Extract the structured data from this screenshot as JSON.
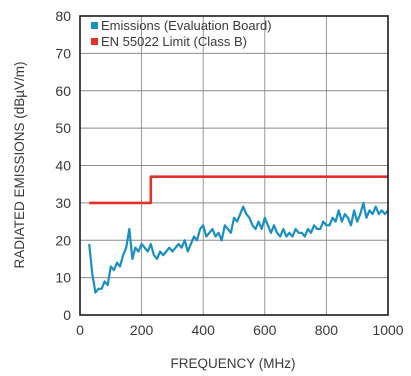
{
  "chart_data": {
    "type": "line",
    "xlabel": "FREQUENCY (MHz)",
    "ylabel": "RADIATED EMISSIONS (dBµV/m)",
    "xlim": [
      0,
      1000
    ],
    "ylim": [
      0,
      80
    ],
    "xticks": [
      0,
      200,
      400,
      600,
      800,
      1000
    ],
    "yticks": [
      0,
      10,
      20,
      30,
      40,
      50,
      60,
      70,
      80
    ],
    "grid": true,
    "legend": "top-left",
    "series": [
      {
        "name": "Emissions (Evaluation Board)",
        "color": "#1a8fc1",
        "x": [
          30,
          40,
          50,
          60,
          70,
          80,
          90,
          100,
          110,
          120,
          130,
          140,
          150,
          160,
          170,
          180,
          190,
          200,
          210,
          220,
          230,
          240,
          250,
          260,
          270,
          280,
          290,
          300,
          310,
          320,
          330,
          340,
          350,
          360,
          370,
          380,
          390,
          400,
          410,
          420,
          430,
          440,
          450,
          460,
          470,
          480,
          490,
          500,
          510,
          520,
          530,
          540,
          550,
          560,
          570,
          580,
          590,
          600,
          610,
          620,
          630,
          640,
          650,
          660,
          670,
          680,
          690,
          700,
          710,
          720,
          730,
          740,
          750,
          760,
          770,
          780,
          790,
          800,
          810,
          820,
          830,
          840,
          850,
          860,
          870,
          880,
          890,
          900,
          910,
          920,
          930,
          940,
          950,
          960,
          970,
          980,
          990,
          1000
        ],
        "values": [
          19,
          11,
          6,
          7,
          7,
          9,
          8,
          13,
          12,
          14,
          13,
          16,
          18,
          23,
          15,
          18,
          17,
          19,
          18,
          17,
          19,
          16,
          15,
          17,
          16,
          17,
          18,
          17,
          18,
          19,
          18,
          20,
          17,
          19,
          21,
          20,
          23,
          24,
          21,
          22,
          23,
          21,
          22,
          20,
          24,
          23,
          22,
          26,
          25,
          27,
          29,
          27,
          26,
          24,
          23,
          25,
          23,
          26,
          24,
          22,
          24,
          22,
          21,
          23,
          21,
          22,
          21,
          23,
          22,
          22,
          21,
          23,
          22,
          24,
          23,
          23,
          25,
          24,
          24,
          26,
          25,
          28,
          25,
          27,
          26,
          24,
          28,
          25,
          27,
          30,
          26,
          28,
          27,
          29,
          27,
          28,
          27,
          28
        ]
      },
      {
        "name": "EN 55022 Limit (Class B)",
        "color": "#e0312b",
        "x": [
          30,
          230,
          230,
          1000
        ],
        "values": [
          30,
          30,
          37,
          37
        ]
      }
    ]
  }
}
